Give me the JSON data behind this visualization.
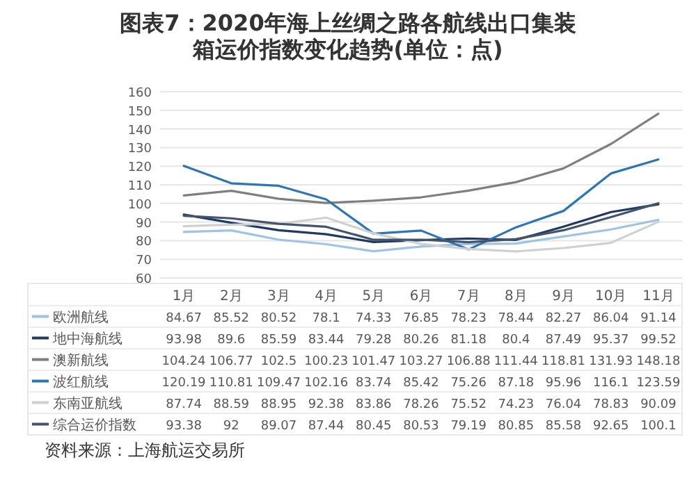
{
  "chart_data": {
    "type": "line",
    "title": "图表7：2020年海上丝绸之路各航线出口集装箱运价指数变化趋势(单位：点)",
    "categories": [
      "1月",
      "2月",
      "3月",
      "4月",
      "5月",
      "6月",
      "7月",
      "8月",
      "9月",
      "10月",
      "11月"
    ],
    "series": [
      {
        "name": "欧洲航线",
        "color": "#9dc3e6",
        "values": [
          84.67,
          85.52,
          80.52,
          78.1,
          74.33,
          76.85,
          78.23,
          78.44,
          82.27,
          86.04,
          91.14
        ]
      },
      {
        "name": "地中海航线",
        "color": "#1f3864",
        "values": [
          93.98,
          89.6,
          85.59,
          83.44,
          79.28,
          80.26,
          81.18,
          80.4,
          87.49,
          95.37,
          99.52
        ]
      },
      {
        "name": "澳新航线",
        "color": "#7f7f7f",
        "values": [
          104.24,
          106.77,
          102.5,
          100.23,
          101.47,
          103.27,
          106.88,
          111.44,
          118.81,
          131.93,
          148.18
        ]
      },
      {
        "name": "波红航线",
        "color": "#2e75b6",
        "values": [
          120.19,
          110.81,
          109.47,
          102.16,
          83.74,
          85.42,
          75.26,
          87.18,
          95.96,
          116.1,
          123.59
        ]
      },
      {
        "name": "东南亚航线",
        "color": "#d0d0d0",
        "values": [
          87.74,
          88.59,
          88.95,
          92.38,
          83.86,
          78.26,
          75.52,
          74.23,
          76.04,
          78.83,
          90.09
        ]
      },
      {
        "name": "综合运价指数",
        "color": "#44546a",
        "values": [
          93.38,
          92,
          89.07,
          87.44,
          80.45,
          80.53,
          79.19,
          80.85,
          85.58,
          92.65,
          100.1
        ]
      }
    ],
    "ylim": [
      60,
      160
    ],
    "yticks": [
      60,
      70,
      80,
      90,
      100,
      110,
      120,
      130,
      140,
      150,
      160
    ],
    "grid": "y",
    "legend": "bottom",
    "data_labels": true,
    "line_style": "solid",
    "marker": "none",
    "annotations": [
      "资料来源：上海航运交易所"
    ]
  }
}
